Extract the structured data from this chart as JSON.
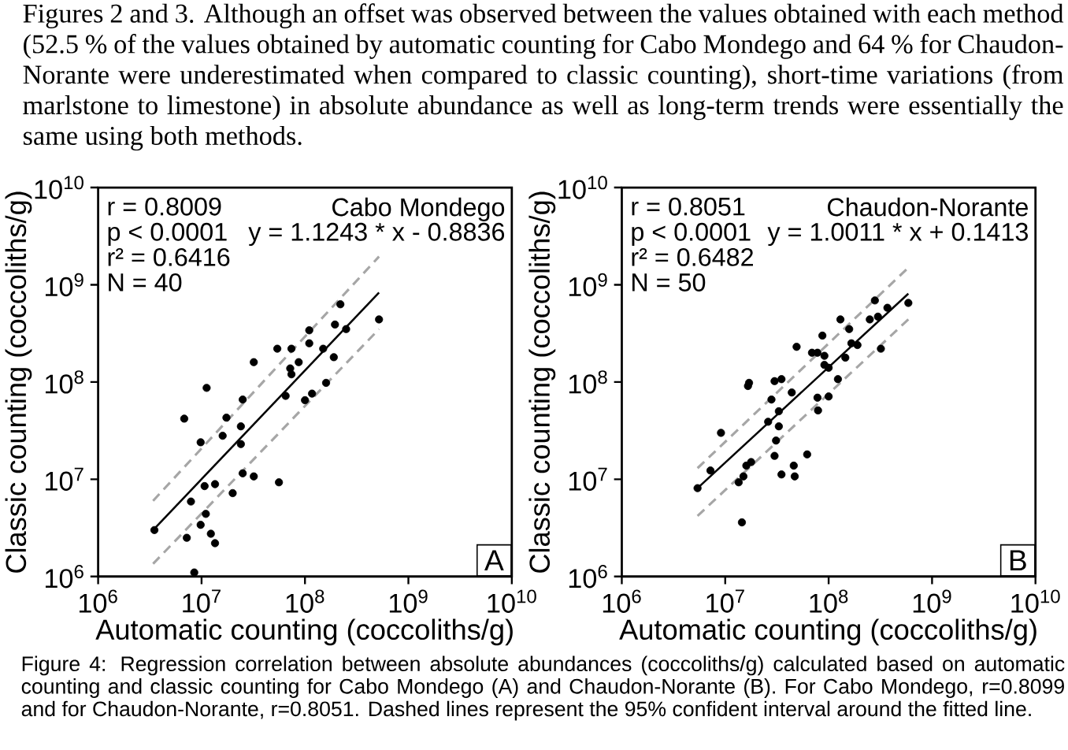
{
  "chart_data": [
    {
      "type": "scatter",
      "marker": "circle",
      "title": "Cabo Mondego",
      "xlabel": "Automatic counting (coccoliths/g)",
      "ylabel": "Classic counting (coccoliths/g)",
      "log": "xy",
      "xlim": [
        1000000,
        10000000000
      ],
      "ylim": [
        1000000,
        10000000000
      ],
      "xticks": [
        {
          "value": 1000000,
          "label": "10$^{6}$"
        },
        {
          "value": 10000000,
          "label": "10$^{7}$"
        },
        {
          "value": 100000000,
          "label": "10$^{8}$"
        },
        {
          "value": 1000000000,
          "label": "10$^{9}$"
        },
        {
          "value": 10000000000,
          "label": "10$^{10}$"
        }
      ],
      "yticks": [
        {
          "value": 1000000,
          "label": "10$^{6}$"
        },
        {
          "value": 10000000,
          "label": "10$^{7}$"
        },
        {
          "value": 100000000,
          "label": "10$^{8}$"
        },
        {
          "value": 1000000000,
          "label": "10$^{9}$"
        },
        {
          "value": 10000000000,
          "label": "10$^{10}$"
        }
      ],
      "annotations": [
        "r = 0.8009",
        "p < 0.0001",
        "r² = 0.6416",
        "N = 40",
        "y = 1.1243 * x - 0.8836",
        "A",
        "Figures 2 and 3. Although an offset was observed between the values obtained with each method (52.5 % of the values obtained by automatic counting for Cabo Mondego and 64 % for Chaudon-Norante were underestimated when compared to classic counting), short-time variations (from marlstone to limestone) in absolute abundance as well as long-term trends were essentially the same using both methods."
      ],
      "series": [
        {
          "color": "#000000",
          "x": [
            3500000.0,
            6800000.0,
            7900000.0,
            7200000.0,
            8500000.0,
            9800000.0,
            9800000.0,
            10700000.0,
            11000000.0,
            11200000.0,
            12300000.0,
            13500000.0,
            13500000.0,
            16000000.0,
            17400000.0,
            20000000.0,
            24000000.0,
            24000000.0,
            25000000.0,
            25000000.0,
            32000000.0,
            32000000.0,
            54000000.0,
            56000000.0,
            65000000.0,
            74000000.0,
            72000000.0,
            74000000.0,
            87000000.0,
            100000000.0,
            110000000.0,
            110000000.0,
            117000000.0,
            150000000.0,
            160000000.0,
            190000000.0,
            195000000.0,
            220000000.0,
            250000000.0,
            520000000.0
          ],
          "values": [
            3000000.0,
            42000000.0,
            5900000.0,
            2500000.0,
            1100000.0,
            24000000.0,
            3400000.0,
            8500000.0,
            4400000.0,
            87000000.0,
            2750000.0,
            2200000.0,
            8900000.0,
            28000000.0,
            43000000.0,
            7200000.0,
            23000000.0,
            35000000.0,
            66000000.0,
            11500000.0,
            10700000.0,
            160000000.0,
            220000000.0,
            9300000.0,
            72000000.0,
            220000000.0,
            138000000.0,
            120000000.0,
            160000000.0,
            65000000.0,
            340000000.0,
            250000000.0,
            76000000.0,
            220000000.0,
            98000000.0,
            180000000.0,
            390000000.0,
            630000000.0,
            350000000.0,
            440000000.0
          ]
        },
        {
          "type": "line",
          "marker": "none",
          "line_style": "solid",
          "color": "#000000",
          "x": [
            3400000.0,
            520000000.0
          ],
          "values": [
            3000000.0,
            830000000.0
          ]
        },
        {
          "type": "line",
          "marker": "none",
          "line_style": "dashed",
          "color": "#a6a6a6",
          "x": [
            3400000.0,
            520000000.0
          ],
          "values": [
            6000000.0,
            1950000000.0
          ]
        },
        {
          "type": "line",
          "marker": "none",
          "line_style": "dashed",
          "color": "#a6a6a6",
          "x": [
            3400000.0,
            520000000.0
          ],
          "values": [
            1350000.0,
            350000000.0
          ]
        }
      ]
    },
    {
      "type": "scatter",
      "marker": "circle",
      "title": "Chaudon-Norante",
      "xlabel": "Automatic counting (coccoliths/g)",
      "ylabel": "Classic counting (coccoliths/g)",
      "log": "xy",
      "xlim": [
        1000000,
        10000000000
      ],
      "ylim": [
        1000000,
        10000000000
      ],
      "xticks": [
        {
          "value": 1000000,
          "label": "10$^{6}$"
        },
        {
          "value": 10000000,
          "label": "10$^{7}$"
        },
        {
          "value": 100000000,
          "label": "10$^{8}$"
        },
        {
          "value": 1000000000,
          "label": "10$^{9}$"
        },
        {
          "value": 10000000000,
          "label": "10$^{10}$"
        }
      ],
      "yticks": [
        {
          "value": 1000000,
          "label": "10$^{6}$"
        },
        {
          "value": 10000000,
          "label": "10$^{7}$"
        },
        {
          "value": 100000000,
          "label": "10$^{8}$"
        },
        {
          "value": 1000000000,
          "label": "10$^{9}$"
        },
        {
          "value": 10000000000,
          "label": "10$^{10}$"
        }
      ],
      "annotations": [
        "r = 0.8051",
        "p < 0.0001",
        "r² = 0.6482",
        "N = 50",
        "y = 1.0011 * x + 0.1413",
        "B",
        "Figure 4: Regression correlation between absolute abundances (coccoliths/g) calculated based on automatic counting and classic counting for Cabo Mondego (A) and Chaudon-Norante (B). For Cabo Mondego, r=0.8099 and for Chaudon-Norante, r=0.8051. Dashed lines represent the 95% confident interval around the fitted line."
      ],
      "series": [
        {
          "color": "#000000",
          "x": [
            5400000.0,
            7200000.0,
            9100000.0,
            13500000.0,
            15000000.0,
            14500000.0,
            16000000.0,
            17800000.0,
            16600000.0,
            17000000.0,
            26000000.0,
            28000000.0,
            30000000.0,
            31000000.0,
            30000000.0,
            33000000.0,
            33000000.0,
            35000000.0,
            35000000.0,
            44000000.0,
            46000000.0,
            47000000.0,
            49000000.0,
            62000000.0,
            69000000.0,
            78000000.0,
            78000000.0,
            79000000.0,
            87000000.0,
            91000000.0,
            91000000.0,
            100000000.0,
            100000000.0,
            123000000.0,
            130000000.0,
            145000000.0,
            158000000.0,
            166000000.0,
            190000000.0,
            250000000.0,
            280000000.0,
            300000000.0,
            320000000.0,
            370000000.0,
            590000000.0
          ],
          "values": [
            8100000.0,
            12300000.0,
            30000000.0,
            9300000.0,
            10700000.0,
            3600000.0,
            13800000.0,
            15000000.0,
            91000000.0,
            98000000.0,
            39000000.0,
            66000000.0,
            17400000.0,
            25000000.0,
            102000000.0,
            50000000.0,
            35000000.0,
            107000000.0,
            11200000.0,
            78000000.0,
            13800000.0,
            10700000.0,
            230000000.0,
            18000000.0,
            200000000.0,
            200000000.0,
            69000000.0,
            51000000.0,
            300000000.0,
            186000000.0,
            150000000.0,
            71000000.0,
            140000000.0,
            107000000.0,
            440000000.0,
            178000000.0,
            350000000.0,
            250000000.0,
            240000000.0,
            440000000.0,
            690000000.0,
            470000000.0,
            220000000.0,
            580000000.0,
            650000000.0
          ]
        },
        {
          "type": "line",
          "marker": "none",
          "line_style": "solid",
          "color": "#000000",
          "x": [
            5400000.0,
            590000000.0
          ],
          "values": [
            8100000.0,
            810000000.0
          ]
        },
        {
          "type": "line",
          "marker": "none",
          "line_style": "dashed",
          "color": "#a6a6a6",
          "x": [
            5400000.0,
            590000000.0
          ],
          "values": [
            13000000.0,
            1500000000.0
          ]
        },
        {
          "type": "line",
          "marker": "none",
          "line_style": "dashed",
          "color": "#a6a6a6",
          "x": [
            5400000.0,
            590000000.0
          ],
          "values": [
            4200000.0,
            440000000.0
          ]
        }
      ]
    }
  ]
}
